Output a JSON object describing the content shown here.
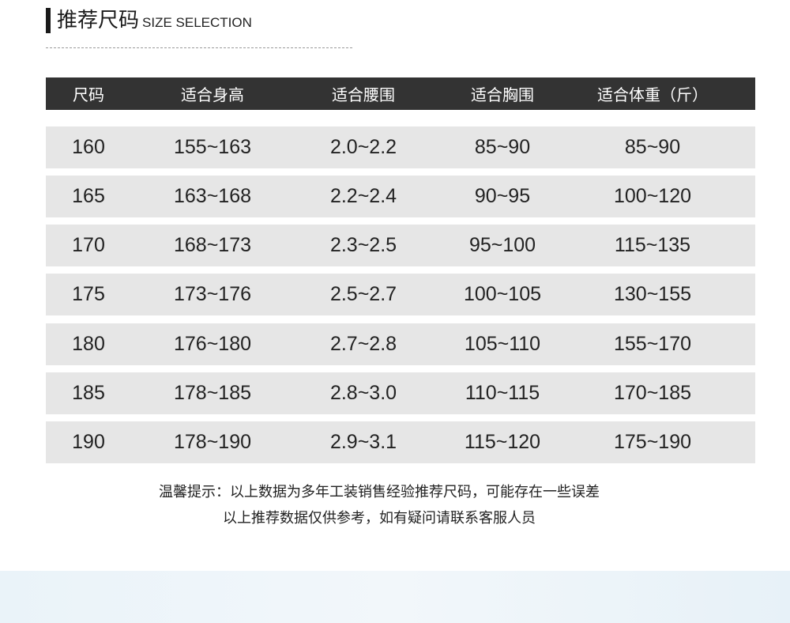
{
  "title": {
    "cn": "推荐尺码",
    "en": "SIZE SELECTION"
  },
  "table": {
    "headers": [
      "尺码",
      "适合身高",
      "适合腰围",
      "适合胸围",
      "适合体重（斤）"
    ],
    "rows": [
      [
        "160",
        "155~163",
        "2.0~2.2",
        "85~90",
        "85~90"
      ],
      [
        "165",
        "163~168",
        "2.2~2.4",
        "90~95",
        "100~120"
      ],
      [
        "170",
        "168~173",
        "2.3~2.5",
        "95~100",
        "115~135"
      ],
      [
        "175",
        "173~176",
        "2.5~2.7",
        "100~105",
        "130~155"
      ],
      [
        "180",
        "176~180",
        "2.7~2.8",
        "105~110",
        "155~170"
      ],
      [
        "185",
        "178~185",
        "2.8~3.0",
        "110~115",
        "170~185"
      ],
      [
        "190",
        "178~190",
        "2.9~3.1",
        "115~120",
        "175~190"
      ]
    ]
  },
  "notes": [
    "温馨提示：以上数据为多年工装销售经验推荐尺码，可能存在一些误差",
    "以上推荐数据仅供参考，如有疑问请联系客服人员"
  ],
  "colors": {
    "header_bg": "#333333",
    "row_bg": "#e6e6e6"
  }
}
